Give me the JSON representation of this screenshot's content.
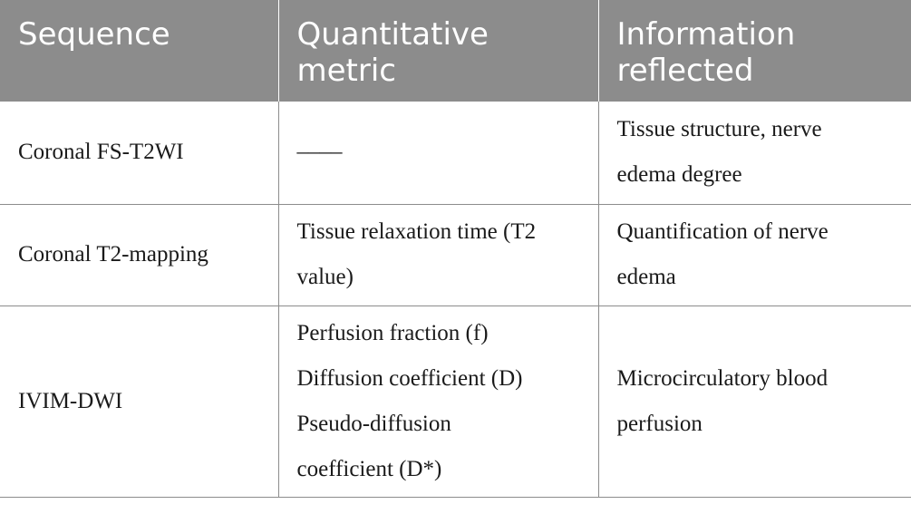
{
  "table": {
    "headers": [
      [
        "Sequence"
      ],
      [
        "Quantitative",
        "metric"
      ],
      [
        "Information",
        "reflected"
      ]
    ],
    "rows": [
      {
        "sequence": [
          "Coronal FS-T2WI"
        ],
        "metric": [
          "––––"
        ],
        "info": [
          "Tissue structure, nerve",
          "edema degree"
        ]
      },
      {
        "sequence": [
          "Coronal T2-mapping"
        ],
        "metric": [
          "Tissue relaxation time (T2",
          "value)"
        ],
        "info": [
          "Quantification of nerve",
          "edema"
        ]
      },
      {
        "sequence": [
          "IVIM-DWI"
        ],
        "metric": [
          "Perfusion fraction (f)",
          "Diffusion coefficient (D)",
          "Pseudo-diffusion",
          "coefficient (D*)"
        ],
        "info": [
          "Microcirculatory blood",
          "perfusion"
        ]
      }
    ]
  }
}
